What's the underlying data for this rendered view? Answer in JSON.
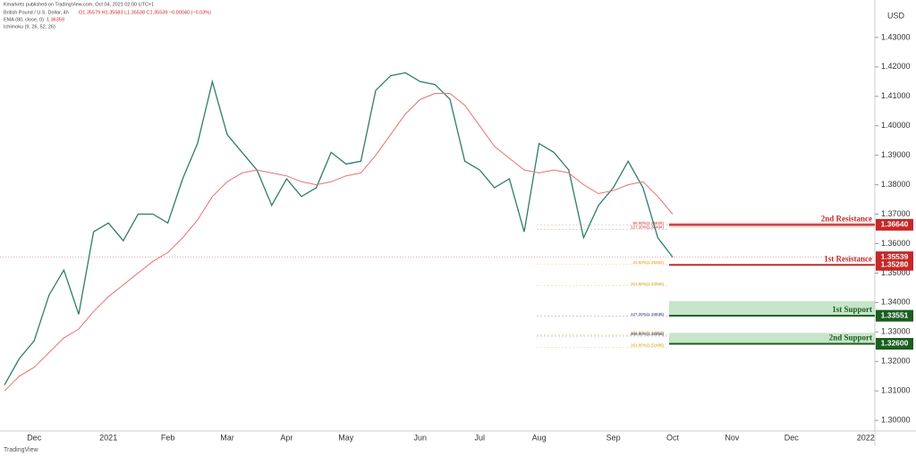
{
  "header": {
    "publisher": "Kmarkets published on TradingView.com, Oct 04, 2021 02:00 UTC+1",
    "ohlc": "O1.35579 H1.35583 L1.35538 C1.35539 −0.00040 (−0.03%)",
    "ema_value": "1.36359",
    "indicator": "Ichimoku (9, 26, 52, 26)",
    "currency": "USD"
  },
  "footer": "TradingView",
  "chart_data": {
    "type": "line",
    "categories": [
      null,
      null,
      "Dec",
      null,
      null,
      null,
      null,
      "2021",
      null,
      null,
      null,
      "Feb",
      null,
      null,
      null,
      "Mar",
      null,
      null,
      null,
      "Apr",
      null,
      null,
      null,
      "May",
      null,
      null,
      null,
      null,
      "Jun",
      null,
      null,
      null,
      "Jul",
      null,
      null,
      null,
      "Aug",
      null,
      null,
      null,
      null,
      "Sep",
      null,
      null,
      null,
      "Oct",
      null,
      null,
      null,
      "Nov",
      null,
      null,
      null,
      "Dec",
      null,
      null,
      null,
      null,
      "2022"
    ],
    "series": [
      {
        "name": "British Pound / U.S. Dollar, 4h",
        "color": "#2e7d6b",
        "values": [
          1.312,
          1.321,
          1.327,
          1.3425,
          1.351,
          1.336,
          1.364,
          1.367,
          1.361,
          1.37,
          1.37,
          1.367,
          1.382,
          1.394,
          1.415,
          1.397,
          1.391,
          1.385,
          1.373,
          1.382,
          1.376,
          1.379,
          1.391,
          1.387,
          1.388,
          1.412,
          1.417,
          1.418,
          1.415,
          1.414,
          1.409,
          1.388,
          1.385,
          1.379,
          1.382,
          1.364,
          1.394,
          1.391,
          1.385,
          1.362,
          1.373,
          1.379,
          1.388,
          1.379,
          1.362,
          1.3554,
          null,
          null,
          null,
          null,
          null,
          null,
          null,
          null,
          null,
          null,
          null,
          null,
          null
        ]
      },
      {
        "name": "EMA (80, close, 0)",
        "color": "#e57373",
        "values": [
          1.31,
          1.315,
          1.318,
          1.323,
          1.328,
          1.331,
          1.337,
          1.342,
          1.346,
          1.35,
          1.354,
          1.357,
          1.362,
          1.368,
          1.376,
          1.381,
          1.384,
          1.385,
          1.384,
          1.383,
          1.381,
          1.38,
          1.381,
          1.383,
          1.384,
          1.39,
          1.397,
          1.404,
          1.409,
          1.411,
          1.411,
          1.407,
          1.4,
          1.393,
          1.389,
          1.385,
          1.384,
          1.385,
          1.384,
          1.38,
          1.377,
          1.378,
          1.38,
          1.381,
          1.376,
          1.37,
          null,
          null,
          null,
          null,
          null,
          null,
          null,
          null,
          null,
          null,
          null,
          null,
          null
        ]
      }
    ],
    "ylim": [
      1.2964,
      1.4412
    ],
    "yticks": [
      {
        "value": 1.3,
        "label": "1.30000"
      },
      {
        "value": 1.31,
        "label": "1.31000"
      },
      {
        "value": 1.32,
        "label": "1.32000"
      },
      {
        "value": 1.33,
        "label": "1.33000"
      },
      {
        "value": 1.34,
        "label": "1.34000"
      },
      {
        "value": 1.35,
        "label": "1.35000"
      },
      {
        "value": 1.36,
        "label": "1.36000"
      },
      {
        "value": 1.37,
        "label": "1.37000"
      },
      {
        "value": 1.38,
        "label": "1.38000"
      },
      {
        "value": 1.39,
        "label": "1.39000"
      },
      {
        "value": 1.4,
        "label": "1.40000"
      },
      {
        "value": 1.41,
        "label": "1.41000"
      },
      {
        "value": 1.42,
        "label": "1.42000"
      },
      {
        "value": 1.43,
        "label": "1.43000"
      }
    ],
    "grid": false,
    "zones": [
      {
        "from": 1.3672,
        "to": 1.3655,
        "color": "#f8c8c8"
      },
      {
        "from": 1.3405,
        "to": 1.3355,
        "color": "#b9dfbb"
      },
      {
        "from": 1.3297,
        "to": 1.326,
        "color": "#b9dfbb"
      }
    ],
    "levels": [
      {
        "name": "2nd Resistance",
        "value": 1.3664,
        "value_label": "1.36640",
        "color": "#c62828"
      },
      {
        "name": "1st Resistance",
        "value": 1.3528,
        "value_label": "1.35280",
        "color": "#c62828"
      },
      {
        "name": "1st Support",
        "value": 1.33551,
        "color": "#1b5e20"
      },
      {
        "name": "2nd Support",
        "value": 1.326,
        "value_label": "1.32600",
        "color": "#1b5e20"
      }
    ],
    "last_price": {
      "value": 1.35539,
      "color": "#c62828"
    },
    "annotations": [
      {
        "text": "50.00%(1.36625)",
        "value": 1.36625,
        "color": "#c62828"
      },
      {
        "text": "127.20%(1.36494)",
        "value": 1.36494,
        "color": "#c62828"
      },
      {
        "text": "23.60%(1.35293)",
        "value": 1.35293,
        "color": "#e69500"
      },
      {
        "text": "161.80%(1.34566)",
        "value": 1.34566,
        "color": "#c9a000"
      },
      {
        "text": "127.20%(1.33536)",
        "value": 1.33536,
        "color": "#1a237e"
      },
      {
        "text": "161.80%(1.32902)",
        "value": 1.32902,
        "color": "#c9a000"
      },
      {
        "text": "200.00%(1.32858)",
        "value": 1.32858,
        "color": "#1a237e"
      },
      {
        "text": "161.80%(1.32486)",
        "value": 1.32486,
        "color": "#c9a000"
      }
    ]
  }
}
